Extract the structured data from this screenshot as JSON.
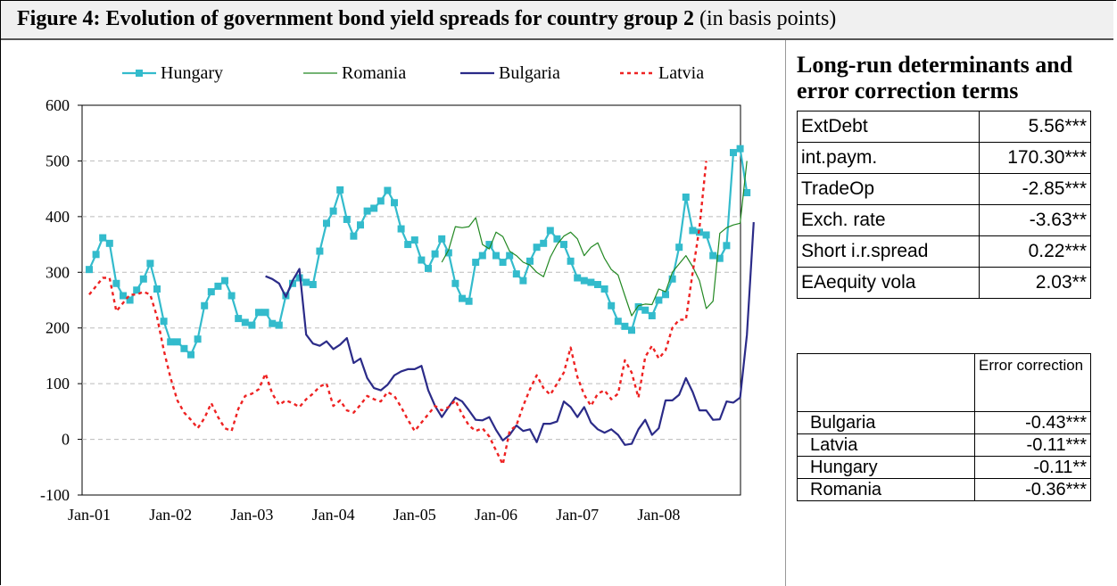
{
  "figure": {
    "title_bold": "Figure 4: Evolution of government bond yield spreads for country group 2",
    "title_rest": " (in basis points)"
  },
  "side": {
    "title": "Long-run determinants and error correction terms",
    "determinants": [
      {
        "name": "ExtDebt",
        "value": "5.56***"
      },
      {
        "name": "int.paym.",
        "value": "170.30***"
      },
      {
        "name": "TradeOp",
        "value": "-2.85***"
      },
      {
        "name": "Exch. rate",
        "value": "-3.63**"
      },
      {
        "name": "Short i.r.spread",
        "value": "0.22***"
      },
      {
        "name": "EAequity vola",
        "value": "2.03**"
      }
    ],
    "ec_header": "Error correction",
    "error_correction": [
      {
        "name": "Bulgaria",
        "value": "-0.43***"
      },
      {
        "name": "Latvia",
        "value": "-0.11***"
      },
      {
        "name": "Hungary",
        "value": "-0.11**"
      },
      {
        "name": "Romania",
        "value": "-0.36***"
      }
    ]
  },
  "chart_data": {
    "type": "line",
    "title": "",
    "xlabel": "",
    "ylabel": "",
    "ylim": [
      -100,
      600
    ],
    "yticks": [
      -100,
      0,
      100,
      200,
      300,
      400,
      500,
      600
    ],
    "xlim": [
      0,
      95
    ],
    "xticks": [
      {
        "label": "Jan-01",
        "index": 0
      },
      {
        "label": "Jan-02",
        "index": 12
      },
      {
        "label": "Jan-03",
        "index": 24
      },
      {
        "label": "Jan-04",
        "index": 36
      },
      {
        "label": "Jan-05",
        "index": 48
      },
      {
        "label": "Jan-06",
        "index": 60
      },
      {
        "label": "Jan-07",
        "index": 72
      },
      {
        "label": "Jan-08",
        "index": 84
      }
    ],
    "grid": true,
    "legend_position": "top",
    "series": [
      {
        "name": "Hungary",
        "color": "#33bbcc",
        "style": "solid-markers",
        "start": 0,
        "values": [
          305,
          332,
          362,
          352,
          280,
          258,
          250,
          268,
          288,
          316,
          270,
          212,
          175,
          175,
          163,
          152,
          180,
          240,
          265,
          275,
          285,
          258,
          217,
          210,
          205,
          228,
          228,
          208,
          205,
          258,
          280,
          290,
          282,
          278,
          338,
          388,
          410,
          448,
          395,
          365,
          385,
          410,
          415,
          428,
          447,
          425,
          378,
          350,
          358,
          322,
          307,
          333,
          360,
          335,
          280,
          253,
          248,
          318,
          330,
          350,
          330,
          318,
          330,
          297,
          285,
          320,
          345,
          352,
          375,
          360,
          350,
          320,
          290,
          285,
          282,
          278,
          270,
          240,
          212,
          203,
          196,
          238,
          232,
          222,
          250,
          260,
          288,
          345,
          435,
          375,
          372,
          367,
          330,
          325,
          348,
          515,
          522,
          443
        ]
      },
      {
        "name": "Romania",
        "color": "#228822",
        "style": "solid-thin",
        "start": 52,
        "values": [
          318,
          340,
          382,
          380,
          382,
          398,
          350,
          342,
          372,
          364,
          338,
          330,
          318,
          313,
          300,
          292,
          327,
          350,
          365,
          372,
          360,
          330,
          345,
          353,
          325,
          305,
          295,
          258,
          222,
          240,
          243,
          242,
          270,
          265,
          300,
          315,
          330,
          310,
          285,
          235,
          248,
          370,
          380,
          385,
          388,
          500
        ]
      },
      {
        "name": "Bulgaria",
        "color": "#2b2b88",
        "style": "solid",
        "start": 26,
        "values": [
          293,
          288,
          280,
          256,
          285,
          306,
          188,
          172,
          168,
          176,
          162,
          170,
          182,
          137,
          145,
          110,
          92,
          88,
          98,
          115,
          122,
          126,
          126,
          132,
          88,
          60,
          40,
          58,
          75,
          68,
          52,
          35,
          34,
          40,
          17,
          -2,
          8,
          25,
          15,
          18,
          -5,
          28,
          28,
          32,
          68,
          58,
          40,
          58,
          30,
          18,
          12,
          18,
          8,
          -10,
          -8,
          18,
          35,
          8,
          20,
          70,
          70,
          80,
          110,
          85,
          52,
          52,
          35,
          36,
          68,
          66,
          75,
          188,
          390
        ]
      },
      {
        "name": "Latvia",
        "color": "#ee2222",
        "style": "dashed",
        "start": 0,
        "values": [
          260,
          275,
          290,
          290,
          230,
          245,
          260,
          260,
          265,
          260,
          220,
          160,
          110,
          70,
          48,
          35,
          20,
          38,
          65,
          40,
          20,
          15,
          55,
          78,
          82,
          90,
          118,
          82,
          62,
          70,
          65,
          58,
          72,
          82,
          95,
          100,
          60,
          70,
          52,
          48,
          62,
          78,
          72,
          68,
          85,
          78,
          58,
          35,
          15,
          30,
          45,
          60,
          52,
          58,
          70,
          45,
          25,
          15,
          20,
          5,
          -20,
          -45,
          15,
          25,
          60,
          90,
          115,
          92,
          80,
          100,
          120,
          165,
          112,
          80,
          60,
          82,
          88,
          72,
          82,
          142,
          120,
          75,
          148,
          168,
          145,
          160,
          200,
          215,
          215,
          300,
          380,
          500
        ]
      }
    ]
  }
}
